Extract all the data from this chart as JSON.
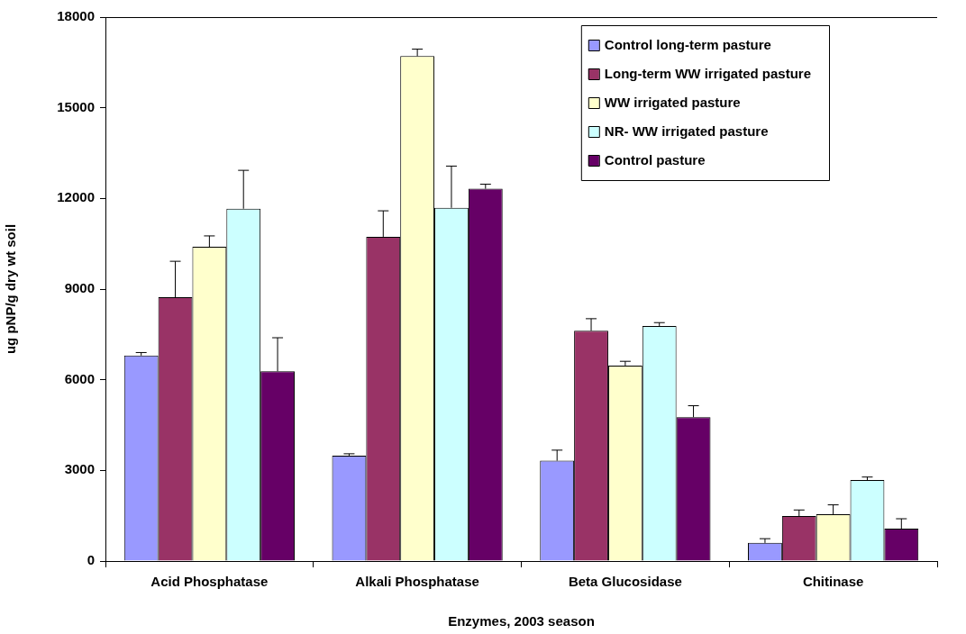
{
  "chart_data": {
    "type": "bar",
    "xlabel": "Enzymes, 2003 season",
    "ylabel": "ug pNP/g dry wt soil",
    "categories": [
      "Acid Phosphatase",
      "Alkali Phosphatase",
      "Beta Glucosidase",
      "Chitinase"
    ],
    "series": [
      {
        "name": "Control long-term pasture",
        "color": "#9999ff",
        "values": [
          6800,
          3490,
          3320,
          600
        ],
        "errors": [
          [
            6800,
            6900
          ],
          [
            3490,
            3550
          ],
          [
            3320,
            3670
          ],
          [
            600,
            740
          ]
        ]
      },
      {
        "name": "Long-term WW irrigated pasture",
        "color": "#993366",
        "values": [
          8730,
          10730,
          7620,
          1490
        ],
        "errors": [
          [
            8730,
            9920
          ],
          [
            10730,
            11590
          ],
          [
            7620,
            8020
          ],
          [
            1490,
            1690
          ]
        ]
      },
      {
        "name": "WW irrigated pasture",
        "color": "#ffffcc",
        "values": [
          10400,
          16710,
          6470,
          1550
        ],
        "errors": [
          [
            10400,
            10760
          ],
          [
            16710,
            16940
          ],
          [
            6470,
            6610
          ],
          [
            1550,
            1860
          ]
        ]
      },
      {
        "name": "NR- WW irrigated pasture",
        "color": "#ccffff",
        "values": [
          11660,
          11690,
          7780,
          2680
        ],
        "errors": [
          [
            11660,
            12930
          ],
          [
            11690,
            13070
          ],
          [
            7780,
            7890
          ],
          [
            2680,
            2780
          ]
        ]
      },
      {
        "name": "Control pasture",
        "color": "#660066",
        "values": [
          6280,
          12320,
          4760,
          1070
        ],
        "errors": [
          [
            6280,
            7390
          ],
          [
            12320,
            12470
          ],
          [
            4760,
            5140
          ],
          [
            1070,
            1400
          ]
        ]
      }
    ],
    "ylim": [
      0,
      18000
    ],
    "yticks": [
      0,
      3000,
      6000,
      9000,
      12000,
      15000,
      18000
    ],
    "grid": false,
    "legend": "top right"
  }
}
